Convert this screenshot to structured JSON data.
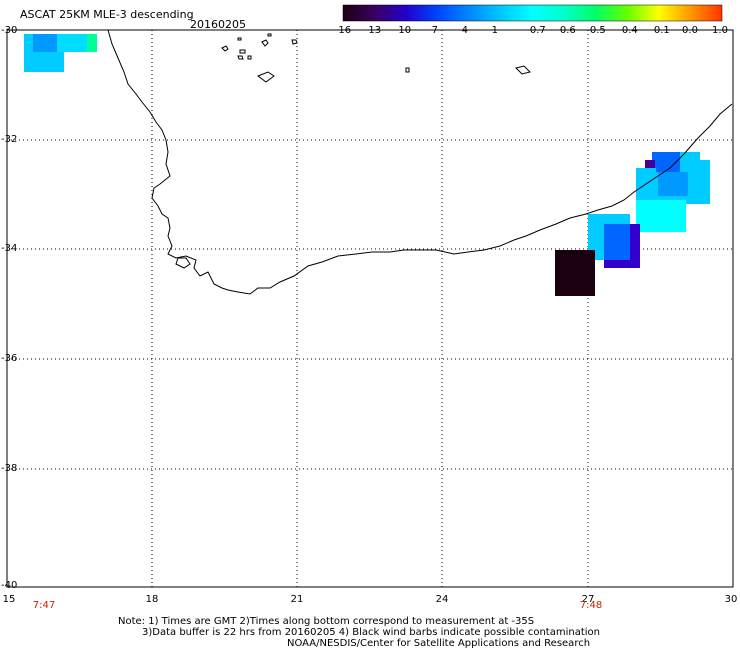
{
  "header": {
    "title": "ASCAT 25KM MLE-3 descending",
    "date": "20160205"
  },
  "colorbar": {
    "tick_labels": [
      "-16",
      "-13",
      "-10",
      "-7",
      "-4",
      "-1",
      "-0.7",
      "-0.6",
      "-0.5",
      "-0.4",
      "-0.1",
      "0.0",
      "1.0"
    ],
    "colors": [
      "#1a0010",
      "#3a0060",
      "#2200cc",
      "#0044ff",
      "#0088ff",
      "#00c8ff",
      "#00ffff",
      "#00ffcc",
      "#00ff66",
      "#66ff00",
      "#ffff00",
      "#ff9900",
      "#ff3300"
    ]
  },
  "map": {
    "lat_labels": [
      "-30",
      "-32",
      "-34",
      "-36",
      "-38",
      "-40"
    ],
    "lon_labels": [
      "15",
      "18",
      "21",
      "24",
      "27",
      "30"
    ],
    "time_labels": [
      "7:47",
      "7:48"
    ],
    "cell_colors": {
      "cyan": "#00ccff",
      "lightblue": "#0099ff",
      "blue": "#0066ff",
      "violet": "#3300cc",
      "darkviolet": "#440099",
      "black": "#1a0010",
      "aqua": "#00ffff",
      "green": "#00ff99"
    }
  },
  "notes": {
    "line1": "Note: 1) Times are GMT 2)Times along bottom correspond to measurement at -35S",
    "line2": "3)Data buffer is 22 hrs from 20160205 4) Black wind barbs indicate possible contamination",
    "line3": "NOAA/NESDIS/Center for Satellite Applications and Research"
  }
}
